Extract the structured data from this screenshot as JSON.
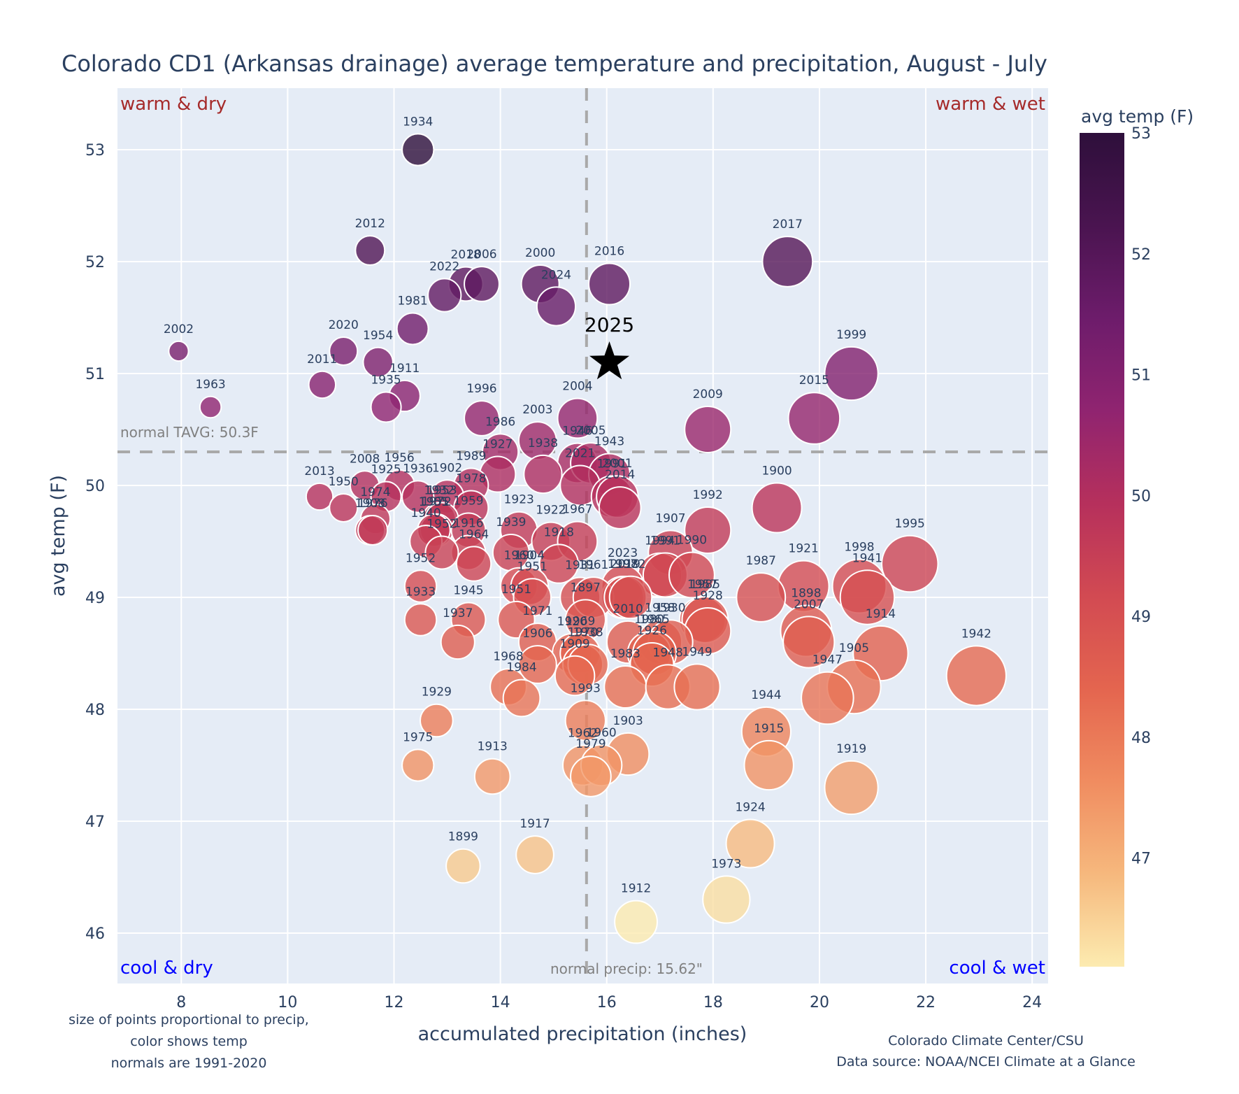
{
  "chart_data": {
    "type": "scatter",
    "title": "Colorado CD1 (Arkansas drainage) average temperature and precipitation, August - July",
    "xlabel": "accumulated precipitation (inches)",
    "ylabel": "avg temp (F)",
    "xlim": [
      6.8,
      24.3
    ],
    "ylim": [
      45.55,
      53.55
    ],
    "xticks": [
      8,
      10,
      12,
      14,
      16,
      18,
      20,
      22,
      24
    ],
    "yticks": [
      46,
      47,
      48,
      49,
      50,
      51,
      52,
      53
    ],
    "grid": true,
    "colorbar": {
      "title": "avg temp (F)",
      "range": [
        46.1,
        53.0
      ],
      "ticks": [
        47,
        48,
        49,
        50,
        51,
        52,
        53
      ],
      "colorscale": "magma-reversed",
      "stops": [
        "#fcebb0",
        "#f6b87d",
        "#f08c60",
        "#e4654f",
        "#d24a52",
        "#b6305c",
        "#902470",
        "#6d1c6b",
        "#4a1450",
        "#2e0f3b"
      ]
    },
    "size_note": "size of points proportional to precip",
    "normals": {
      "tavg": 50.3,
      "tavg_label": "normal TAVG: 50.3F",
      "precip": 15.62,
      "precip_label": "normal precip: 15.62\""
    },
    "quadrant_labels": {
      "top_left": "warm & dry",
      "top_right": "warm & wet",
      "bottom_left": "cool & dry",
      "bottom_right": "cool & wet"
    },
    "highlight": {
      "label": "2025",
      "x": 16.05,
      "y": 51.1,
      "marker": "star"
    },
    "points": [
      {
        "year": "1934",
        "x": 12.45,
        "y": 53.0
      },
      {
        "year": "2012",
        "x": 11.55,
        "y": 52.1
      },
      {
        "year": "2018",
        "x": 13.35,
        "y": 51.8
      },
      {
        "year": "2006",
        "x": 13.65,
        "y": 51.8
      },
      {
        "year": "2022",
        "x": 12.95,
        "y": 51.7
      },
      {
        "year": "2000",
        "x": 14.75,
        "y": 51.8
      },
      {
        "year": "2024",
        "x": 15.05,
        "y": 51.6
      },
      {
        "year": "2016",
        "x": 16.05,
        "y": 51.8
      },
      {
        "year": "2017",
        "x": 19.4,
        "y": 52.0
      },
      {
        "year": "1981",
        "x": 12.35,
        "y": 51.4
      },
      {
        "year": "2002",
        "x": 7.95,
        "y": 51.2
      },
      {
        "year": "2020",
        "x": 11.05,
        "y": 51.2
      },
      {
        "year": "1954",
        "x": 11.7,
        "y": 51.1
      },
      {
        "year": "2011",
        "x": 10.65,
        "y": 50.9
      },
      {
        "year": "1911",
        "x": 12.2,
        "y": 50.8
      },
      {
        "year": "1935",
        "x": 11.85,
        "y": 50.7
      },
      {
        "year": "1963",
        "x": 8.55,
        "y": 50.7
      },
      {
        "year": "1999",
        "x": 20.6,
        "y": 51.0
      },
      {
        "year": "1996",
        "x": 13.65,
        "y": 50.6
      },
      {
        "year": "2004",
        "x": 15.45,
        "y": 50.6
      },
      {
        "year": "2015",
        "x": 19.9,
        "y": 50.6
      },
      {
        "year": "2009",
        "x": 17.9,
        "y": 50.5
      },
      {
        "year": "2003",
        "x": 14.7,
        "y": 50.4
      },
      {
        "year": "1986",
        "x": 14.0,
        "y": 50.3
      },
      {
        "year": "1946",
        "x": 15.45,
        "y": 50.2
      },
      {
        "year": "2005",
        "x": 15.7,
        "y": 50.2
      },
      {
        "year": "1943",
        "x": 16.05,
        "y": 50.1
      },
      {
        "year": "1927",
        "x": 13.95,
        "y": 50.1
      },
      {
        "year": "1938",
        "x": 14.8,
        "y": 50.1
      },
      {
        "year": "2021",
        "x": 15.5,
        "y": 50.0
      },
      {
        "year": "1991",
        "x": 16.1,
        "y": 49.9
      },
      {
        "year": "2001",
        "x": 16.2,
        "y": 49.9
      },
      {
        "year": "2014",
        "x": 16.25,
        "y": 49.8
      },
      {
        "year": "1902",
        "x": 13.0,
        "y": 49.9
      },
      {
        "year": "1989",
        "x": 13.45,
        "y": 50.0
      },
      {
        "year": "2013",
        "x": 10.6,
        "y": 49.9
      },
      {
        "year": "1950",
        "x": 11.05,
        "y": 49.8
      },
      {
        "year": "2008",
        "x": 11.45,
        "y": 50.0
      },
      {
        "year": "1956",
        "x": 12.1,
        "y": 50.0
      },
      {
        "year": "1925",
        "x": 11.85,
        "y": 49.9
      },
      {
        "year": "1936",
        "x": 12.45,
        "y": 49.9
      },
      {
        "year": "1974",
        "x": 11.65,
        "y": 49.7
      },
      {
        "year": "1908",
        "x": 11.55,
        "y": 49.6
      },
      {
        "year": "1976",
        "x": 11.6,
        "y": 49.6
      },
      {
        "year": "1932",
        "x": 12.85,
        "y": 49.7
      },
      {
        "year": "1953",
        "x": 12.9,
        "y": 49.7
      },
      {
        "year": "1955",
        "x": 12.75,
        "y": 49.6
      },
      {
        "year": "1972",
        "x": 12.8,
        "y": 49.6
      },
      {
        "year": "1978",
        "x": 13.45,
        "y": 49.8
      },
      {
        "year": "1940",
        "x": 12.6,
        "y": 49.5
      },
      {
        "year": "1901",
        "x": 12.75,
        "y": 49.6
      },
      {
        "year": "1959",
        "x": 13.4,
        "y": 49.6
      },
      {
        "year": "1916",
        "x": 13.4,
        "y": 49.4
      },
      {
        "year": "1964",
        "x": 13.5,
        "y": 49.3
      },
      {
        "year": "1952",
        "x": 12.9,
        "y": 49.4
      },
      {
        "year": "1923",
        "x": 14.35,
        "y": 49.6
      },
      {
        "year": "1939",
        "x": 14.2,
        "y": 49.4
      },
      {
        "year": "1922",
        "x": 14.95,
        "y": 49.5
      },
      {
        "year": "1967",
        "x": 15.45,
        "y": 49.5
      },
      {
        "year": "1918",
        "x": 15.1,
        "y": 49.3
      },
      {
        "year": "1960",
        "x": 14.35,
        "y": 49.1
      },
      {
        "year": "1904",
        "x": 14.55,
        "y": 49.1
      },
      {
        "year": "2023",
        "x": 16.3,
        "y": 49.1
      },
      {
        "year": "1907",
        "x": 17.2,
        "y": 49.4
      },
      {
        "year": "1992",
        "x": 17.9,
        "y": 49.6
      },
      {
        "year": "1900",
        "x": 19.2,
        "y": 49.8
      },
      {
        "year": "1994",
        "x": 17.0,
        "y": 49.2
      },
      {
        "year": "1991b",
        "x": 17.1,
        "y": 49.2
      },
      {
        "year": "1990",
        "x": 17.6,
        "y": 49.2
      },
      {
        "year": "1997",
        "x": 16.3,
        "y": 49.0
      },
      {
        "year": "1931",
        "x": 15.5,
        "y": 49.0
      },
      {
        "year": "1961",
        "x": 15.75,
        "y": 49.0
      },
      {
        "year": "2019",
        "x": 16.35,
        "y": 49.0
      },
      {
        "year": "1982",
        "x": 16.45,
        "y": 49.0
      },
      {
        "year": "1897",
        "x": 15.6,
        "y": 48.8
      },
      {
        "year": "1957",
        "x": 17.8,
        "y": 48.8
      },
      {
        "year": "1985",
        "x": 17.85,
        "y": 48.8
      },
      {
        "year": "1928",
        "x": 17.9,
        "y": 48.7
      },
      {
        "year": "1987",
        "x": 18.9,
        "y": 49.0
      },
      {
        "year": "1921",
        "x": 19.7,
        "y": 49.1
      },
      {
        "year": "1998",
        "x": 20.75,
        "y": 49.1
      },
      {
        "year": "1941",
        "x": 20.9,
        "y": 49.0
      },
      {
        "year": "1995",
        "x": 21.7,
        "y": 49.3
      },
      {
        "year": "1898",
        "x": 19.75,
        "y": 48.7
      },
      {
        "year": "2007",
        "x": 19.8,
        "y": 48.6
      },
      {
        "year": "1914",
        "x": 21.15,
        "y": 48.5
      },
      {
        "year": "1942",
        "x": 22.95,
        "y": 48.3
      },
      {
        "year": "1905",
        "x": 20.65,
        "y": 48.2
      },
      {
        "year": "1947",
        "x": 20.15,
        "y": 48.1
      },
      {
        "year": "1952b",
        "x": 12.5,
        "y": 49.1
      },
      {
        "year": "1933",
        "x": 12.5,
        "y": 48.8
      },
      {
        "year": "1945",
        "x": 13.4,
        "y": 48.8
      },
      {
        "year": "1937",
        "x": 13.2,
        "y": 48.6
      },
      {
        "year": "1951",
        "x": 14.6,
        "y": 49.0
      },
      {
        "year": "1951b",
        "x": 14.3,
        "y": 48.8
      },
      {
        "year": "1971",
        "x": 14.7,
        "y": 48.6
      },
      {
        "year": "1906",
        "x": 14.7,
        "y": 48.4
      },
      {
        "year": "1920",
        "x": 15.35,
        "y": 48.5
      },
      {
        "year": "1969",
        "x": 15.5,
        "y": 48.5
      },
      {
        "year": "1970",
        "x": 15.55,
        "y": 48.4
      },
      {
        "year": "1938b",
        "x": 15.65,
        "y": 48.4
      },
      {
        "year": "1909",
        "x": 15.4,
        "y": 48.3
      },
      {
        "year": "1968",
        "x": 14.15,
        "y": 48.2
      },
      {
        "year": "1984",
        "x": 14.4,
        "y": 48.1
      },
      {
        "year": "2010",
        "x": 16.4,
        "y": 48.6
      },
      {
        "year": "1980",
        "x": 16.8,
        "y": 48.5
      },
      {
        "year": "1958",
        "x": 17.0,
        "y": 48.6
      },
      {
        "year": "1965",
        "x": 16.9,
        "y": 48.5
      },
      {
        "year": "1926",
        "x": 16.85,
        "y": 48.4
      },
      {
        "year": "1930",
        "x": 17.2,
        "y": 48.6
      },
      {
        "year": "1983",
        "x": 16.35,
        "y": 48.2
      },
      {
        "year": "1948",
        "x": 17.15,
        "y": 48.2
      },
      {
        "year": "1949",
        "x": 17.7,
        "y": 48.2
      },
      {
        "year": "1993",
        "x": 15.6,
        "y": 47.9
      },
      {
        "year": "1929",
        "x": 12.8,
        "y": 47.9
      },
      {
        "year": "1975",
        "x": 12.45,
        "y": 47.5
      },
      {
        "year": "1913",
        "x": 13.85,
        "y": 47.4
      },
      {
        "year": "1962",
        "x": 15.55,
        "y": 47.5
      },
      {
        "year": "1960b",
        "x": 15.9,
        "y": 47.5
      },
      {
        "year": "1979",
        "x": 15.7,
        "y": 47.4
      },
      {
        "year": "1903",
        "x": 16.4,
        "y": 47.6
      },
      {
        "year": "1944",
        "x": 19.0,
        "y": 47.8
      },
      {
        "year": "1915",
        "x": 19.05,
        "y": 47.5
      },
      {
        "year": "1919",
        "x": 20.6,
        "y": 47.3
      },
      {
        "year": "1924",
        "x": 18.7,
        "y": 46.8
      },
      {
        "year": "1917",
        "x": 14.65,
        "y": 46.7
      },
      {
        "year": "1899",
        "x": 13.3,
        "y": 46.6
      },
      {
        "year": "1973",
        "x": 18.25,
        "y": 46.3
      },
      {
        "year": "1912",
        "x": 16.55,
        "y": 46.1
      }
    ]
  },
  "footnotes": {
    "left_1": "size of points proportional to precip,",
    "left_2": "color shows temp",
    "left_3": "normals are 1991-2020",
    "right_1": "Colorado Climate Center/CSU",
    "right_2": "Data source: NOAA/NCEI Climate at a Glance"
  },
  "colors": {
    "plot_bg": "#e5ecf6",
    "grid": "#ffffff",
    "text": "#2a3f5f",
    "normal_line": "#a9a9a9",
    "warm_label": "#a52a2a",
    "cool_label": "#0000ff"
  }
}
